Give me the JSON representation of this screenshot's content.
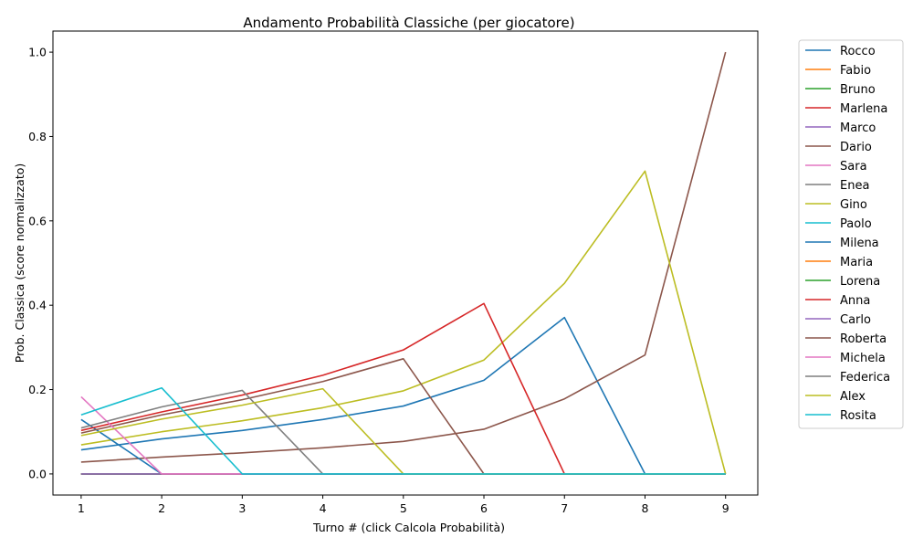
{
  "chart_data": {
    "type": "line",
    "title": "Andamento Probabilità Classiche (per giocatore)",
    "xlabel": "Turno # (click Calcola Probabilità)",
    "ylabel": "Prob. Classica (score normalizzato)",
    "xlim": [
      0.65,
      9.4
    ],
    "ylim": [
      -0.05,
      1.05
    ],
    "x": [
      1,
      2,
      3,
      4,
      5,
      6,
      7,
      8,
      9
    ],
    "xticks": [
      "1",
      "2",
      "3",
      "4",
      "5",
      "6",
      "7",
      "8",
      "9"
    ],
    "yticks": [
      "0.0",
      "0.2",
      "0.4",
      "0.6",
      "0.8",
      "1.0"
    ],
    "grid": false,
    "legend_position": "outside-right",
    "series": [
      {
        "name": "Rocco",
        "color": "#1f77b4",
        "values": [
          0.057,
          0.083,
          0.103,
          0.129,
          0.161,
          0.222,
          0.371,
          0.0,
          0.0
        ]
      },
      {
        "name": "Fabio",
        "color": "#ff7f0e",
        "values": [
          0.0,
          0.0,
          0.0,
          0.0,
          0.0,
          0.0,
          0.0,
          0.0,
          0.0
        ]
      },
      {
        "name": "Bruno",
        "color": "#2ca02c",
        "values": [
          0.0,
          0.0,
          0.0,
          0.0,
          0.0,
          0.0,
          0.0,
          0.0,
          0.0
        ]
      },
      {
        "name": "Marlena",
        "color": "#d62728",
        "values": [
          0.0,
          0.0,
          0.0,
          0.0,
          0.0,
          0.0,
          0.0,
          0.0,
          0.0
        ]
      },
      {
        "name": "Marco",
        "color": "#9467bd",
        "values": [
          0.0,
          0.0,
          0.0,
          0.0,
          0.0,
          0.0,
          0.0,
          0.0,
          0.0
        ]
      },
      {
        "name": "Dario",
        "color": "#8c564b",
        "values": [
          0.028,
          0.04,
          0.05,
          0.062,
          0.077,
          0.106,
          0.178,
          0.282,
          1.0
        ]
      },
      {
        "name": "Sara",
        "color": "#e377c2",
        "values": [
          0.0,
          0.0,
          0.0,
          0.0,
          0.0,
          0.0,
          0.0,
          0.0,
          0.0
        ]
      },
      {
        "name": "Enea",
        "color": "#7f7f7f",
        "values": [
          0.0,
          0.0,
          0.0,
          0.0,
          0.0,
          0.0,
          0.0,
          0.0,
          0.0
        ]
      },
      {
        "name": "Gino",
        "color": "#bcbd22",
        "values": [
          0.069,
          0.1,
          0.126,
          0.157,
          0.197,
          0.27,
          0.452,
          0.718,
          0.0
        ]
      },
      {
        "name": "Paolo",
        "color": "#17becf",
        "values": [
          0.0,
          0.0,
          0.0,
          0.0,
          0.0,
          0.0,
          0.0,
          0.0,
          0.0
        ]
      },
      {
        "name": "Milena",
        "color": "#1f77b4",
        "values": [
          0.129,
          0.0,
          0.0,
          0.0,
          0.0,
          0.0,
          0.0,
          0.0,
          0.0
        ]
      },
      {
        "name": "Maria",
        "color": "#ff7f0e",
        "values": [
          0.0,
          0.0,
          0.0,
          0.0,
          0.0,
          0.0,
          0.0,
          0.0,
          0.0
        ]
      },
      {
        "name": "Lorena",
        "color": "#2ca02c",
        "values": [
          0.0,
          0.0,
          0.0,
          0.0,
          0.0,
          0.0,
          0.0,
          0.0,
          0.0
        ]
      },
      {
        "name": "Anna",
        "color": "#d62728",
        "values": [
          0.103,
          0.147,
          0.187,
          0.234,
          0.294,
          0.404,
          0.0,
          0.0,
          0.0
        ]
      },
      {
        "name": "Carlo",
        "color": "#9467bd",
        "values": [
          0.0,
          0.0,
          0.0,
          0.0,
          0.0,
          0.0,
          0.0,
          0.0,
          0.0
        ]
      },
      {
        "name": "Roberta",
        "color": "#8c564b",
        "values": [
          0.097,
          0.14,
          0.176,
          0.219,
          0.273,
          0.0,
          0.0,
          0.0,
          0.0
        ]
      },
      {
        "name": "Michela",
        "color": "#e377c2",
        "values": [
          0.183,
          0.0,
          0.0,
          0.0,
          0.0,
          0.0,
          0.0,
          0.0,
          0.0
        ]
      },
      {
        "name": "Federica",
        "color": "#7f7f7f",
        "values": [
          0.109,
          0.159,
          0.198,
          0.0,
          0.0,
          0.0,
          0.0,
          0.0,
          0.0
        ]
      },
      {
        "name": "Alex",
        "color": "#bcbd22",
        "values": [
          0.091,
          0.13,
          0.163,
          0.202,
          0.0,
          0.0,
          0.0,
          0.0,
          0.0
        ]
      },
      {
        "name": "Rosita",
        "color": "#17becf",
        "values": [
          0.14,
          0.204,
          0.0,
          0.0,
          0.0,
          0.0,
          0.0,
          0.0,
          0.0
        ]
      }
    ]
  }
}
